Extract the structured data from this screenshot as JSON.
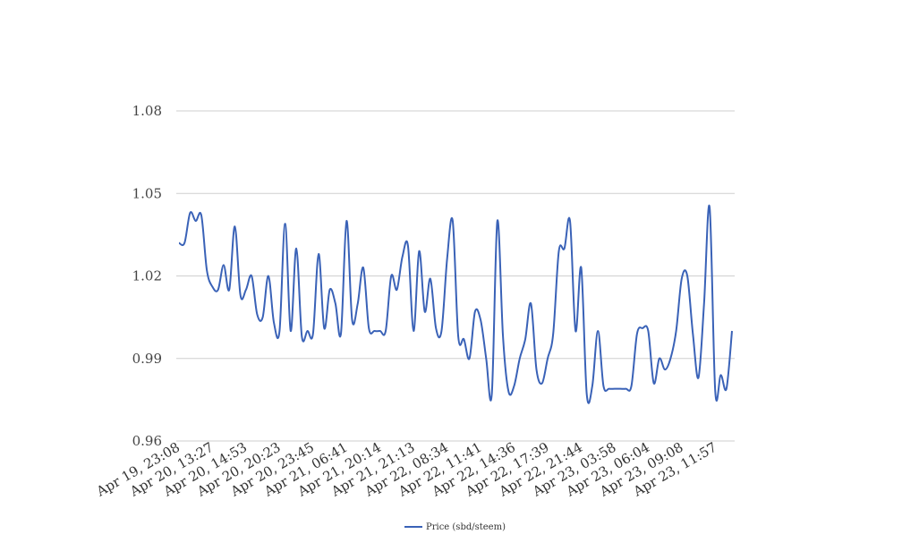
{
  "chart_data": {
    "type": "line",
    "title": "",
    "xlabel": "",
    "ylabel": "",
    "ylim": [
      0.96,
      1.08
    ],
    "y_ticks": [
      "0.96",
      "0.99",
      "1.02",
      "1.05",
      "1.08"
    ],
    "grid": "horizontal",
    "legend": "bottom",
    "x_tick_labels": [
      "Apr 19, 23:08",
      "Apr 20, 13:27",
      "Apr 20, 14:53",
      "Apr 20, 20:23",
      "Apr 20, 23:45",
      "Apr 21, 06:41",
      "Apr 21, 20:14",
      "Apr 21, 21:13",
      "Apr 22, 08:34",
      "Apr 22, 11:41",
      "Apr 22, 14:36",
      "Apr 22, 17:39",
      "Apr 22, 21:44",
      "Apr 23, 03:58",
      "Apr 23, 06:04",
      "Apr 23, 09:08",
      "Apr 23, 11:57"
    ],
    "series": [
      {
        "name": "Price (sbd/steem)",
        "color": "#3a62b7",
        "values": [
          1.032,
          1.032,
          1.043,
          1.04,
          1.042,
          1.022,
          1.016,
          1.015,
          1.024,
          1.015,
          1.038,
          1.013,
          1.015,
          1.02,
          1.006,
          1.005,
          1.02,
          1.003,
          1.0,
          1.039,
          1.0,
          1.03,
          0.998,
          1.0,
          0.999,
          1.028,
          1.001,
          1.015,
          1.01,
          0.999,
          1.04,
          1.004,
          1.01,
          1.023,
          1.001,
          1.0,
          1.0,
          1.0,
          1.02,
          1.015,
          1.027,
          1.031,
          1.0,
          1.029,
          1.007,
          1.019,
          1.001,
          1.0,
          1.026,
          1.04,
          0.998,
          0.997,
          0.99,
          1.007,
          1.004,
          0.99,
          0.977,
          1.04,
          0.998,
          0.978,
          0.98,
          0.99,
          0.997,
          1.01,
          0.986,
          0.981,
          0.99,
          0.999,
          1.029,
          1.03,
          1.04,
          1.0,
          1.023,
          0.977,
          0.98,
          1.0,
          0.98,
          0.979,
          0.979,
          0.979,
          0.979,
          0.98,
          0.999,
          1.001,
          1.0,
          0.981,
          0.99,
          0.986,
          0.99,
          1.0,
          1.019,
          1.02,
          0.999,
          0.983,
          1.01,
          1.045,
          0.978,
          0.984,
          0.979,
          1.0
        ]
      }
    ]
  }
}
